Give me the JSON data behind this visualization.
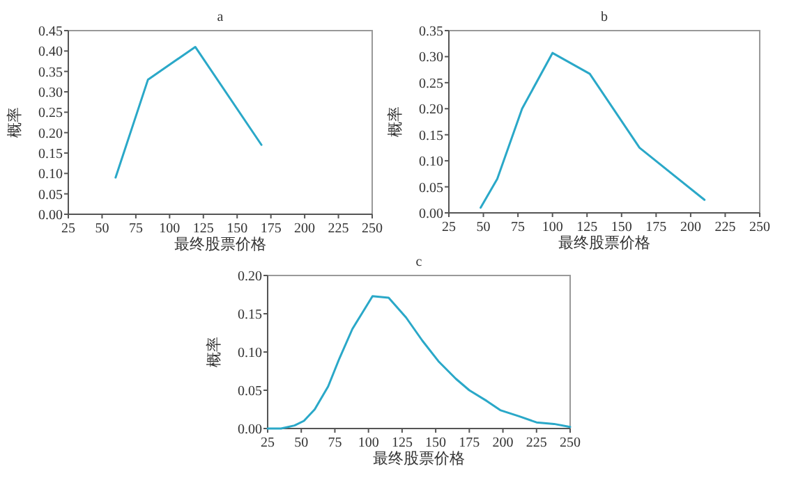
{
  "chart_data": [
    {
      "type": "line",
      "title": "a",
      "xlabel": "最终股票价格",
      "ylabel": "概率",
      "xlim": [
        25,
        250
      ],
      "xticks": [
        25,
        50,
        75,
        100,
        125,
        150,
        175,
        200,
        225,
        250
      ],
      "ylim": [
        0,
        0.45
      ],
      "yticks": [
        {
          "value": 0,
          "label": "0.00"
        },
        {
          "value": 0.05,
          "label": "0.05"
        },
        {
          "value": 0.1,
          "label": "0.10"
        },
        {
          "value": 0.15,
          "label": "0.15"
        },
        {
          "value": 0.2,
          "label": "0.20"
        },
        {
          "value": 0.25,
          "label": "0.25"
        },
        {
          "value": 0.3,
          "label": "0.30"
        },
        {
          "value": 0.35,
          "label": "0.35"
        },
        {
          "value": 0.4,
          "label": "0.40"
        },
        {
          "value": 0.45,
          "label": "0.45"
        }
      ],
      "series": [
        {
          "color": "#2aa8c8",
          "x": [
            60,
            84,
            119,
            168
          ],
          "values": [
            0.09,
            0.33,
            0.41,
            0.17
          ]
        }
      ]
    },
    {
      "type": "line",
      "title": "b",
      "xlabel": "最终股票价格",
      "ylabel": "概率",
      "xlim": [
        25,
        250
      ],
      "xticks": [
        25,
        50,
        75,
        100,
        125,
        150,
        175,
        200,
        225,
        250
      ],
      "ylim": [
        0,
        0.35
      ],
      "yticks": [
        {
          "value": 0,
          "label": "0.00"
        },
        {
          "value": 0.05,
          "label": "0.05"
        },
        {
          "value": 0.1,
          "label": "0.10"
        },
        {
          "value": 0.15,
          "label": "0.15"
        },
        {
          "value": 0.2,
          "label": "0.20"
        },
        {
          "value": 0.25,
          "label": "0.25"
        },
        {
          "value": 0.3,
          "label": "0.30"
        },
        {
          "value": 0.35,
          "label": "0.35"
        }
      ],
      "series": [
        {
          "color": "#2aa8c8",
          "x": [
            48,
            60,
            78,
            100,
            127,
            163,
            210
          ],
          "values": [
            0.01,
            0.065,
            0.2,
            0.307,
            0.267,
            0.125,
            0.025
          ]
        }
      ]
    },
    {
      "type": "line",
      "title": "c",
      "xlabel": "最终股票价格",
      "ylabel": "概率",
      "xlim": [
        25,
        250
      ],
      "xticks": [
        25,
        50,
        75,
        100,
        125,
        150,
        175,
        200,
        225,
        250
      ],
      "ylim": [
        0,
        0.2
      ],
      "yticks": [
        {
          "value": 0,
          "label": "0.00"
        },
        {
          "value": 0.05,
          "label": "0.05"
        },
        {
          "value": 0.1,
          "label": "0.10"
        },
        {
          "value": 0.15,
          "label": "0.15"
        },
        {
          "value": 0.2,
          "label": "0.20"
        }
      ],
      "series": [
        {
          "color": "#2aa8c8",
          "x": [
            25,
            35,
            45,
            52,
            60,
            70,
            78,
            88,
            95,
            103,
            115,
            128,
            140,
            152,
            165,
            175,
            188,
            198,
            212,
            225,
            238,
            250
          ],
          "values": [
            0,
            0,
            0.004,
            0.01,
            0.025,
            0.055,
            0.09,
            0.13,
            0.15,
            0.173,
            0.171,
            0.145,
            0.115,
            0.088,
            0.065,
            0.05,
            0.036,
            0.024,
            0.016,
            0.008,
            0.006,
            0.002
          ]
        }
      ]
    }
  ]
}
